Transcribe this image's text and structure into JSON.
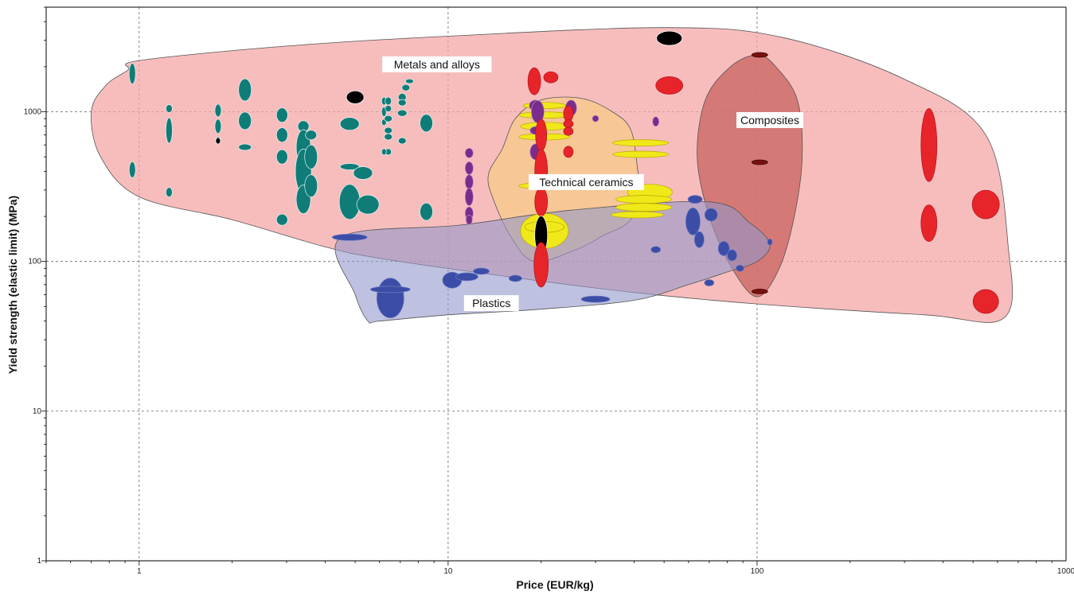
{
  "chart_data": {
    "type": "scatter",
    "title": "",
    "xlabel": "Price (EUR/kg)",
    "ylabel": "Yield strength (elastic limit) (MPa)",
    "xscale": "log",
    "yscale": "log",
    "xlim": [
      0.5,
      1000
    ],
    "ylim": [
      1,
      5000
    ],
    "x_ticks": [
      1,
      10,
      100,
      1000
    ],
    "x_tick_labels": [
      "1",
      "10",
      "100",
      "1000"
    ],
    "y_ticks": [
      1,
      10,
      100,
      1000
    ],
    "y_tick_labels": [
      "1",
      "10",
      "100",
      "1000"
    ],
    "grid": true,
    "colors": {
      "metals": "#e8242b",
      "metals_envelope": "#f4a3a4",
      "plastics": "#3b4da6",
      "plastics_envelope": "#9297c9",
      "ceramics": "#f0e91a",
      "ceramics_envelope": "#f6c98c",
      "composites": "#7a1010",
      "composites_envelope": "#c9635f",
      "teal": "#0f7c78",
      "purple": "#7a2c8c",
      "black": "#000000"
    },
    "families": [
      {
        "label": "Metals and alloys",
        "label_at": [
          9.2,
          2050
        ],
        "envelope": [
          [
            0.92,
            1900
          ],
          [
            1.0,
            2200
          ],
          [
            3,
            2750
          ],
          [
            10,
            3200
          ],
          [
            50,
            3650
          ],
          [
            120,
            3150
          ],
          [
            300,
            1650
          ],
          [
            550,
            700
          ],
          [
            650,
            125
          ],
          [
            630,
            42
          ],
          [
            350,
            44
          ],
          [
            100,
            52
          ],
          [
            40,
            62
          ],
          [
            15,
            80
          ],
          [
            6,
            105
          ],
          [
            4,
            125
          ],
          [
            2,
            190
          ],
          [
            1.0,
            270
          ],
          [
            0.75,
            500
          ],
          [
            0.7,
            1000
          ],
          [
            0.78,
            1500
          ]
        ]
      },
      {
        "label": "Technical ceramics",
        "label_at": [
          28,
          335
        ],
        "envelope": [
          [
            15,
            570
          ],
          [
            16.5,
            900
          ],
          [
            20,
            1200
          ],
          [
            27,
            1230
          ],
          [
            34,
            1000
          ],
          [
            39,
            760
          ],
          [
            41,
            420
          ],
          [
            42,
            250
          ],
          [
            38,
            180
          ],
          [
            32,
            150
          ],
          [
            26,
            120
          ],
          [
            19,
            100
          ],
          [
            16,
            145
          ],
          [
            14,
            260
          ],
          [
            13.5,
            380
          ]
        ]
      },
      {
        "label": "Composites",
        "label_at": [
          110,
          870
        ],
        "envelope": [
          [
            100,
            2400
          ],
          [
            115,
            2000
          ],
          [
            135,
            1200
          ],
          [
            140,
            500
          ],
          [
            132,
            200
          ],
          [
            118,
            90
          ],
          [
            100,
            58
          ],
          [
            83,
            90
          ],
          [
            70,
            200
          ],
          [
            64,
            500
          ],
          [
            68,
            1200
          ],
          [
            82,
            2000
          ]
        ]
      },
      {
        "label": "Plastics",
        "label_at": [
          13.8,
          52
        ],
        "envelope": [
          [
            4.5,
            145
          ],
          [
            11,
            175
          ],
          [
            25,
            220
          ],
          [
            70,
            250
          ],
          [
            95,
            180
          ],
          [
            110,
            130
          ],
          [
            100,
            100
          ],
          [
            80,
            85
          ],
          [
            60,
            70
          ],
          [
            40,
            55
          ],
          [
            20,
            48
          ],
          [
            10,
            44
          ],
          [
            6,
            40
          ],
          [
            5.5,
            40
          ],
          [
            5,
            60
          ]
        ]
      }
    ],
    "materials": [
      {
        "g": "teal",
        "x": 0.95,
        "y": 1800,
        "rx": 4,
        "ry": 13
      },
      {
        "g": "teal",
        "x": 0.95,
        "y": 410,
        "rx": 4,
        "ry": 10
      },
      {
        "g": "teal",
        "x": 1.25,
        "y": 750,
        "rx": 4,
        "ry": 16
      },
      {
        "g": "teal",
        "x": 1.25,
        "y": 1050,
        "rx": 4,
        "ry": 5
      },
      {
        "g": "teal",
        "x": 1.25,
        "y": 290,
        "rx": 4,
        "ry": 6
      },
      {
        "g": "teal",
        "x": 1.8,
        "y": 1020,
        "rx": 4,
        "ry": 8
      },
      {
        "g": "teal",
        "x": 1.8,
        "y": 800,
        "rx": 4,
        "ry": 9
      },
      {
        "g": "teal",
        "x": 1.8,
        "y": 650,
        "rx": 3,
        "ry": 4
      },
      {
        "g": "black",
        "x": 1.8,
        "y": 640,
        "rx": 3,
        "ry": 4
      },
      {
        "g": "teal",
        "x": 2.2,
        "y": 1400,
        "rx": 8,
        "ry": 14
      },
      {
        "g": "teal",
        "x": 2.2,
        "y": 870,
        "rx": 8,
        "ry": 11
      },
      {
        "g": "teal",
        "x": 2.2,
        "y": 580,
        "rx": 8,
        "ry": 4
      },
      {
        "g": "teal",
        "x": 2.9,
        "y": 950,
        "rx": 7,
        "ry": 9
      },
      {
        "g": "teal",
        "x": 2.9,
        "y": 700,
        "rx": 7,
        "ry": 9
      },
      {
        "g": "teal",
        "x": 2.9,
        "y": 500,
        "rx": 7,
        "ry": 9
      },
      {
        "g": "teal",
        "x": 2.9,
        "y": 190,
        "rx": 7,
        "ry": 7
      },
      {
        "g": "teal",
        "x": 3.4,
        "y": 800,
        "rx": 7,
        "ry": 7
      },
      {
        "g": "teal",
        "x": 3.4,
        "y": 580,
        "rx": 9,
        "ry": 22
      },
      {
        "g": "teal",
        "x": 3.4,
        "y": 400,
        "rx": 10,
        "ry": 28
      },
      {
        "g": "teal",
        "x": 3.4,
        "y": 260,
        "rx": 9,
        "ry": 18
      },
      {
        "g": "teal",
        "x": 3.6,
        "y": 700,
        "rx": 7,
        "ry": 6
      },
      {
        "g": "teal",
        "x": 3.6,
        "y": 500,
        "rx": 8,
        "ry": 15
      },
      {
        "g": "teal",
        "x": 3.6,
        "y": 320,
        "rx": 8,
        "ry": 14
      },
      {
        "g": "teal",
        "x": 4.8,
        "y": 830,
        "rx": 12,
        "ry": 8
      },
      {
        "g": "teal",
        "x": 4.8,
        "y": 430,
        "rx": 12,
        "ry": 4
      },
      {
        "g": "teal",
        "x": 4.8,
        "y": 250,
        "rx": 13,
        "ry": 22
      },
      {
        "g": "teal",
        "x": 5.3,
        "y": 390,
        "rx": 12,
        "ry": 8
      },
      {
        "g": "teal",
        "x": 5.5,
        "y": 240,
        "rx": 14,
        "ry": 12
      },
      {
        "g": "black",
        "x": 5.0,
        "y": 1250,
        "rx": 11,
        "ry": 8
      },
      {
        "g": "teal",
        "x": 6.2,
        "y": 1180,
        "rx": 3,
        "ry": 5
      },
      {
        "g": "teal",
        "x": 6.2,
        "y": 1000,
        "rx": 3,
        "ry": 6
      },
      {
        "g": "teal",
        "x": 6.2,
        "y": 850,
        "rx": 3,
        "ry": 4
      },
      {
        "g": "teal",
        "x": 6.4,
        "y": 1180,
        "rx": 4,
        "ry": 5
      },
      {
        "g": "teal",
        "x": 6.4,
        "y": 1050,
        "rx": 4,
        "ry": 4
      },
      {
        "g": "teal",
        "x": 6.4,
        "y": 900,
        "rx": 5,
        "ry": 4
      },
      {
        "g": "teal",
        "x": 6.4,
        "y": 750,
        "rx": 5,
        "ry": 4
      },
      {
        "g": "teal",
        "x": 6.4,
        "y": 680,
        "rx": 5,
        "ry": 4
      },
      {
        "g": "teal",
        "x": 6.4,
        "y": 540,
        "rx": 4,
        "ry": 4
      },
      {
        "g": "teal",
        "x": 6.2,
        "y": 540,
        "rx": 3,
        "ry": 4
      },
      {
        "g": "teal",
        "x": 7.1,
        "y": 1250,
        "rx": 5,
        "ry": 5
      },
      {
        "g": "teal",
        "x": 7.1,
        "y": 1150,
        "rx": 5,
        "ry": 4
      },
      {
        "g": "teal",
        "x": 7.1,
        "y": 980,
        "rx": 6,
        "ry": 4
      },
      {
        "g": "teal",
        "x": 7.1,
        "y": 640,
        "rx": 5,
        "ry": 4
      },
      {
        "g": "teal",
        "x": 7.3,
        "y": 1450,
        "rx": 5,
        "ry": 4
      },
      {
        "g": "teal",
        "x": 7.5,
        "y": 1600,
        "rx": 5,
        "ry": 3
      },
      {
        "g": "teal",
        "x": 8.5,
        "y": 840,
        "rx": 8,
        "ry": 11
      },
      {
        "g": "teal",
        "x": 8.5,
        "y": 215,
        "rx": 8,
        "ry": 11
      },
      {
        "g": "purple",
        "x": 11.7,
        "y": 530,
        "rx": 5,
        "ry": 6
      },
      {
        "g": "purple",
        "x": 11.7,
        "y": 420,
        "rx": 5,
        "ry": 8
      },
      {
        "g": "purple",
        "x": 11.7,
        "y": 340,
        "rx": 5,
        "ry": 9
      },
      {
        "g": "purple",
        "x": 11.7,
        "y": 270,
        "rx": 5,
        "ry": 11
      },
      {
        "g": "purple",
        "x": 11.7,
        "y": 210,
        "rx": 5,
        "ry": 8
      },
      {
        "g": "purple",
        "x": 11.7,
        "y": 190,
        "rx": 4,
        "ry": 6
      },
      {
        "g": "ceramics",
        "x": 20.5,
        "y": 1100,
        "rx": 27,
        "ry": 4
      },
      {
        "g": "ceramics",
        "x": 20.5,
        "y": 950,
        "rx": 32,
        "ry": 4
      },
      {
        "g": "ceramics",
        "x": 20.5,
        "y": 800,
        "rx": 30,
        "ry": 5
      },
      {
        "g": "ceramics",
        "x": 20.5,
        "y": 680,
        "rx": 32,
        "ry": 4
      },
      {
        "g": "ceramics",
        "x": 20.5,
        "y": 320,
        "rx": 32,
        "ry": 4
      },
      {
        "g": "ceramics",
        "x": 20.5,
        "y": 160,
        "rx": 30,
        "ry": 22
      },
      {
        "g": "ceramics",
        "x": 20.5,
        "y": 170,
        "rx": 25,
        "ry": 7
      },
      {
        "g": "ceramics",
        "x": 42,
        "y": 620,
        "rx": 35,
        "ry": 4
      },
      {
        "g": "ceramics",
        "x": 42,
        "y": 520,
        "rx": 35,
        "ry": 4
      },
      {
        "g": "ceramics",
        "x": 45,
        "y": 290,
        "rx": 28,
        "ry": 10
      },
      {
        "g": "ceramics",
        "x": 43,
        "y": 260,
        "rx": 35,
        "ry": 5
      },
      {
        "g": "ceramics",
        "x": 43,
        "y": 230,
        "rx": 35,
        "ry": 5
      },
      {
        "g": "ceramics",
        "x": 41,
        "y": 205,
        "rx": 33,
        "ry": 4
      },
      {
        "g": "purple",
        "x": 19.2,
        "y": 1100,
        "rx": 8,
        "ry": 7
      },
      {
        "g": "purple",
        "x": 19.5,
        "y": 1000,
        "rx": 8,
        "ry": 14
      },
      {
        "g": "purple",
        "x": 19.2,
        "y": 750,
        "rx": 7,
        "ry": 5
      },
      {
        "g": "purple",
        "x": 19.2,
        "y": 540,
        "rx": 7,
        "ry": 10
      },
      {
        "g": "purple",
        "x": 25,
        "y": 1060,
        "rx": 7,
        "ry": 10
      },
      {
        "g": "purple",
        "x": 30,
        "y": 900,
        "rx": 4,
        "ry": 4
      },
      {
        "g": "purple",
        "x": 47,
        "y": 860,
        "rx": 4,
        "ry": 6
      },
      {
        "g": "metals",
        "x": 19.0,
        "y": 1600,
        "rx": 8,
        "ry": 17
      },
      {
        "g": "metals",
        "x": 20,
        "y": 700,
        "rx": 7,
        "ry": 20
      },
      {
        "g": "metals",
        "x": 20,
        "y": 400,
        "rx": 8,
        "ry": 28
      },
      {
        "g": "metals",
        "x": 20,
        "y": 250,
        "rx": 8,
        "ry": 18
      },
      {
        "g": "black",
        "x": 20,
        "y": 150,
        "rx": 8,
        "ry": 24
      },
      {
        "g": "metals",
        "x": 20,
        "y": 95,
        "rx": 9,
        "ry": 28
      },
      {
        "g": "metals",
        "x": 21.5,
        "y": 1700,
        "rx": 9,
        "ry": 7
      },
      {
        "g": "metals",
        "x": 24.5,
        "y": 970,
        "rx": 6,
        "ry": 10
      },
      {
        "g": "metals",
        "x": 24.5,
        "y": 830,
        "rx": 6,
        "ry": 5
      },
      {
        "g": "metals",
        "x": 24.5,
        "y": 740,
        "rx": 6,
        "ry": 5
      },
      {
        "g": "metals",
        "x": 24.5,
        "y": 540,
        "rx": 6,
        "ry": 7
      },
      {
        "g": "metals",
        "x": 28,
        "y": 330,
        "rx": 7,
        "ry": 5
      },
      {
        "g": "black",
        "x": 52,
        "y": 3100,
        "rx": 16,
        "ry": 9
      },
      {
        "g": "metals",
        "x": 52,
        "y": 1500,
        "rx": 17,
        "ry": 11
      },
      {
        "g": "metals",
        "x": 360,
        "y": 600,
        "rx": 10,
        "ry": 46
      },
      {
        "g": "metals",
        "x": 360,
        "y": 180,
        "rx": 10,
        "ry": 23
      },
      {
        "g": "metals",
        "x": 550,
        "y": 240,
        "rx": 17,
        "ry": 18
      },
      {
        "g": "metals",
        "x": 550,
        "y": 54,
        "rx": 16,
        "ry": 15
      },
      {
        "g": "composites",
        "x": 102,
        "y": 2400,
        "rx": 10,
        "ry": 3
      },
      {
        "g": "composites",
        "x": 102,
        "y": 460,
        "rx": 10,
        "ry": 3
      },
      {
        "g": "composites",
        "x": 102,
        "y": 63,
        "rx": 10,
        "ry": 3
      },
      {
        "g": "plastics",
        "x": 6.5,
        "y": 57,
        "rx": 17,
        "ry": 25
      },
      {
        "g": "plastics",
        "x": 6.5,
        "y": 65,
        "rx": 25,
        "ry": 4
      },
      {
        "g": "plastics",
        "x": 4.8,
        "y": 145,
        "rx": 22,
        "ry": 4
      },
      {
        "g": "plastics",
        "x": 10.3,
        "y": 75,
        "rx": 12,
        "ry": 10
      },
      {
        "g": "plastics",
        "x": 11.5,
        "y": 79,
        "rx": 14,
        "ry": 5
      },
      {
        "g": "plastics",
        "x": 12.8,
        "y": 86,
        "rx": 10,
        "ry": 4
      },
      {
        "g": "plastics",
        "x": 16.5,
        "y": 77,
        "rx": 8,
        "ry": 4
      },
      {
        "g": "plastics",
        "x": 30,
        "y": 56,
        "rx": 18,
        "ry": 4
      },
      {
        "g": "plastics",
        "x": 47,
        "y": 120,
        "rx": 6,
        "ry": 4
      },
      {
        "g": "plastics",
        "x": 63,
        "y": 260,
        "rx": 9,
        "ry": 5
      },
      {
        "g": "plastics",
        "x": 62,
        "y": 185,
        "rx": 9,
        "ry": 17
      },
      {
        "g": "plastics",
        "x": 65,
        "y": 140,
        "rx": 6,
        "ry": 10
      },
      {
        "g": "plastics",
        "x": 71,
        "y": 205,
        "rx": 8,
        "ry": 8
      },
      {
        "g": "plastics",
        "x": 70,
        "y": 72,
        "rx": 6,
        "ry": 4
      },
      {
        "g": "plastics",
        "x": 78,
        "y": 122,
        "rx": 7,
        "ry": 9
      },
      {
        "g": "plastics",
        "x": 83,
        "y": 110,
        "rx": 6,
        "ry": 7
      },
      {
        "g": "plastics",
        "x": 88,
        "y": 90,
        "rx": 5,
        "ry": 4
      },
      {
        "g": "plastics",
        "x": 110,
        "y": 135,
        "rx": 3,
        "ry": 4
      }
    ]
  }
}
